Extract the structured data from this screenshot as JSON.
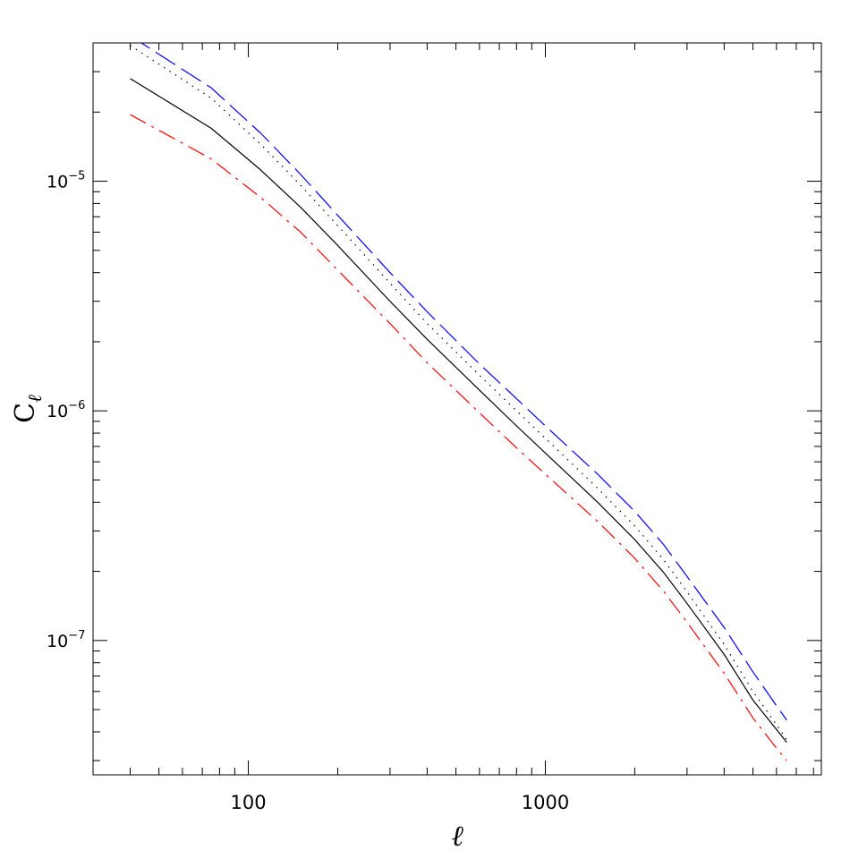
{
  "chart_data": {
    "type": "line",
    "xlabel": "ℓ",
    "ylabel": "C",
    "ylabel_subscript": "ℓ",
    "x_scale": "log",
    "y_scale": "log",
    "xlim": [
      30,
      8500
    ],
    "ylim": [
      2.6e-08,
      4e-05
    ],
    "grid": false,
    "x_ticks": [
      {
        "value": 100,
        "label": "100"
      },
      {
        "value": 1000,
        "label": "1000"
      }
    ],
    "y_ticks": [
      {
        "value": 1e-05,
        "base": "10",
        "exp": "−5"
      },
      {
        "value": 1e-06,
        "base": "10",
        "exp": "−6"
      },
      {
        "value": 1e-07,
        "base": "10",
        "exp": "−7"
      }
    ],
    "series": [
      {
        "style": "solid",
        "color": "#000000",
        "x": [
          40,
          75,
          110,
          150,
          200,
          300,
          400,
          600,
          800,
          1000,
          1500,
          2000,
          2500,
          3000,
          4000,
          5000,
          6000,
          6500
        ],
        "y": [
          2.8e-05,
          1.7e-05,
          1.12e-05,
          7.7e-06,
          5.25e-06,
          3e-06,
          2.05e-06,
          1.23e-06,
          8.6e-07,
          6.55e-07,
          4e-07,
          2.75e-07,
          1.98e-07,
          1.45e-07,
          8.7e-08,
          5.5e-08,
          4.1e-08,
          3.6e-08
        ]
      },
      {
        "style": "dotted",
        "color": "#000000",
        "x": [
          40,
          75,
          110,
          150,
          200,
          300,
          400,
          600,
          800,
          1000,
          1500,
          2000,
          2500,
          3000,
          4000,
          5000,
          6000,
          6500
        ],
        "y": [
          3.9e-05,
          2.3e-05,
          1.45e-05,
          9.6e-06,
          6.4e-06,
          3.6e-06,
          2.4e-06,
          1.43e-06,
          1e-06,
          7.6e-07,
          4.6e-07,
          3.15e-07,
          2.25e-07,
          1.63e-07,
          9.6e-08,
          6e-08,
          4.3e-08,
          3.7e-08
        ]
      },
      {
        "style": "long-dash",
        "color": "#0000ff",
        "x": [
          40,
          75,
          110,
          150,
          200,
          300,
          400,
          600,
          800,
          1000,
          1500,
          2000,
          2500,
          3000,
          4000,
          5000,
          6000,
          6500
        ],
        "y": [
          4.3e-05,
          2.55e-05,
          1.62e-05,
          1.07e-05,
          7.1e-06,
          4e-06,
          2.7e-06,
          1.6e-06,
          1.13e-06,
          8.6e-07,
          5.3e-07,
          3.65e-07,
          2.62e-07,
          1.9e-07,
          1.14e-07,
          7.3e-08,
          5.2e-08,
          4.5e-08
        ]
      },
      {
        "style": "dash-dot",
        "color": "#ff0000",
        "x": [
          40,
          75,
          110,
          150,
          200,
          300,
          400,
          600,
          800,
          1000,
          1500,
          2000,
          2500,
          3000,
          4000,
          5000,
          6000,
          6500
        ],
        "y": [
          1.95e-05,
          1.25e-05,
          8.5e-06,
          6e-06,
          4.1e-06,
          2.4e-06,
          1.62e-06,
          9.8e-07,
          6.9e-07,
          5.3e-07,
          3.3e-07,
          2.28e-07,
          1.64e-07,
          1.2e-07,
          7.2e-08,
          4.6e-08,
          3.4e-08,
          3e-08
        ]
      }
    ]
  }
}
